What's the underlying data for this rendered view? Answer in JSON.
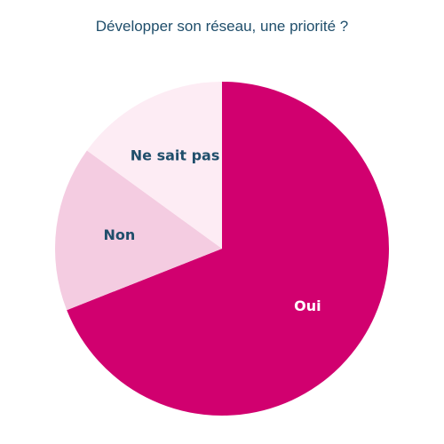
{
  "chart_data": {
    "type": "pie",
    "title": "Développer son réseau, une priorité ?",
    "start_angle": "12 o'clock, clockwise",
    "slices": [
      {
        "label": "Oui",
        "value": 69,
        "color": "#d1006f",
        "label_color": "#ffffff"
      },
      {
        "label": "Non",
        "value": 16,
        "color": "#f4cce1",
        "label_color": "#1f4e6b"
      },
      {
        "label": "Ne sait pas",
        "value": 15,
        "color": "#fdecf4",
        "label_color": "#1f4e6b"
      }
    ]
  }
}
